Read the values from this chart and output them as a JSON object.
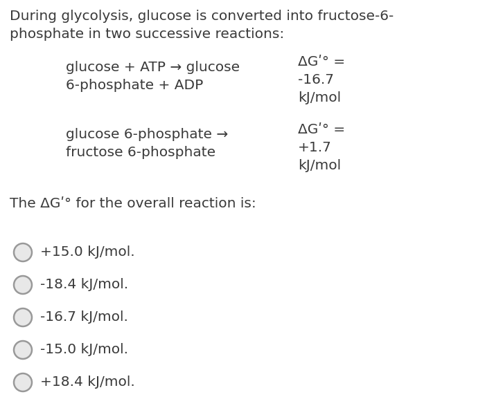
{
  "bg_color": "#ffffff",
  "text_color": "#3a3a3a",
  "title_line1": "During glycolysis, glucose is converted into fructose-6-",
  "title_line2": "phosphate in two successive reactions:",
  "reaction1_line1": "glucose + ATP → glucose",
  "reaction1_line2": "6-phosphate + ADP",
  "reaction1_dg_line1": "ΔGʹ° =",
  "reaction1_dg_line2": "-16.7",
  "reaction1_dg_line3": "kJ/mol",
  "reaction2_line1": "glucose 6-phosphate →",
  "reaction2_line2": "fructose 6-phosphate",
  "reaction2_dg_line1": "ΔGʹ° =",
  "reaction2_dg_line2": "+1.7",
  "reaction2_dg_line3": "kJ/mol",
  "question": "The ΔGʹ° for the overall reaction is:",
  "options": [
    "+15.0 kJ/mol.",
    "-18.4 kJ/mol.",
    "-16.7 kJ/mol.",
    "-15.0 kJ/mol.",
    "+18.4 kJ/mol."
  ],
  "font_size": 14.5,
  "circle_fill": "#e8e8e8",
  "circle_edge": "#999999"
}
